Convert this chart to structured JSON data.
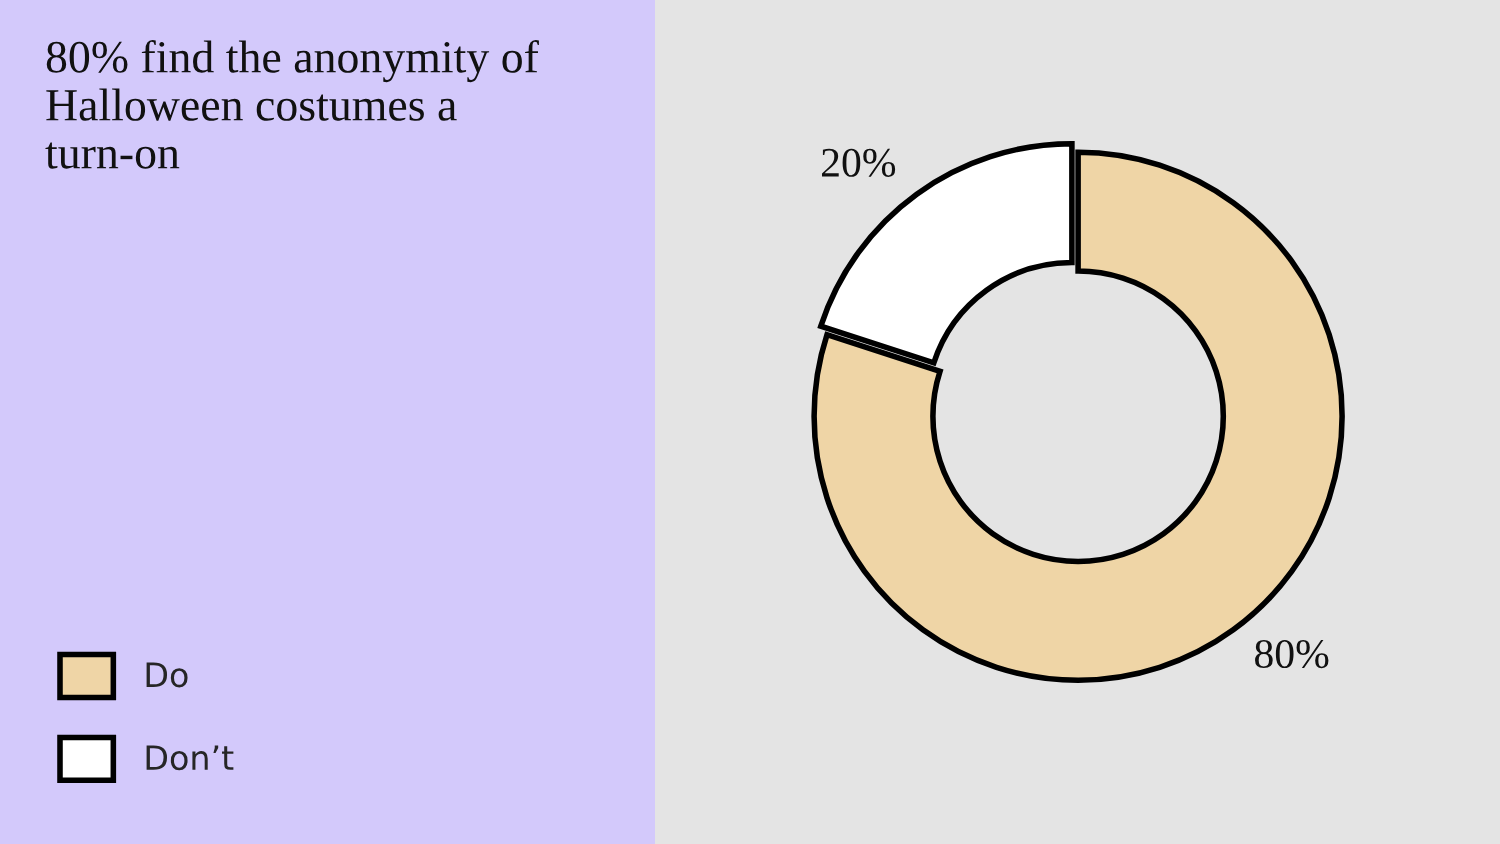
{
  "chart_data": {
    "type": "donut",
    "title": "80% find the anonymity of\nHalloween costumes a\nturn-on",
    "categories": [
      "Do",
      "Don’t"
    ],
    "values": [
      80,
      20
    ],
    "colors": [
      "#efd5a6",
      "#ffffff"
    ],
    "value_labels": [
      "80%",
      "20%"
    ],
    "legend": "bottom left"
  }
}
